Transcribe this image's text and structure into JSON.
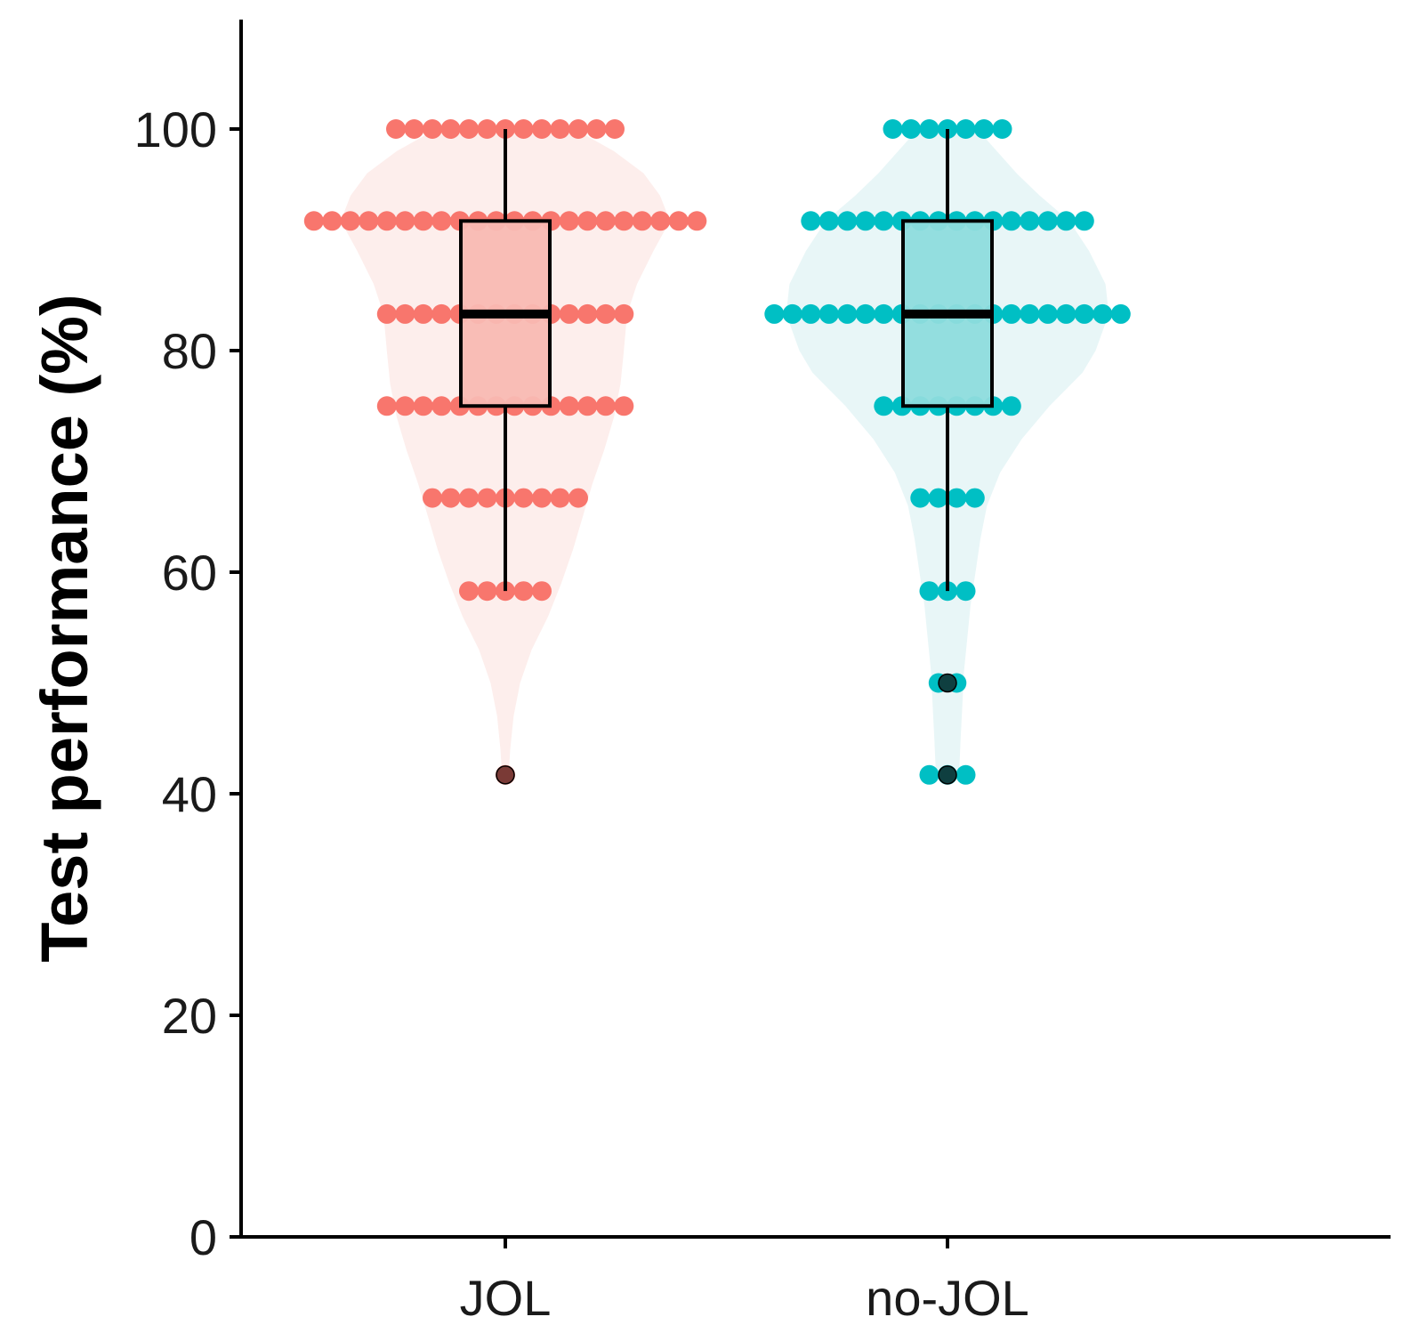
{
  "chart_data": {
    "type": "violin",
    "title": "",
    "xlabel": "",
    "ylabel": "Test performance (%)",
    "ylim": [
      0,
      110
    ],
    "y_ticks": [
      0,
      20,
      40,
      60,
      80,
      100
    ],
    "categories": [
      "JOL",
      "no-JOL"
    ],
    "grid": false,
    "legend": "none",
    "series": [
      {
        "category": "JOL",
        "color": "#F8766D",
        "violin_fill": "#FDEEEC",
        "box_fill": "#F9B9B3",
        "outlier_color": "#7A3A36",
        "box": {
          "whisker_low": 58.3,
          "q1": 75,
          "median": 83.3,
          "q3": 91.7,
          "whisker_high": 100
        },
        "outliers": [
          41.7
        ],
        "dots": [
          {
            "y": 100,
            "count": 13
          },
          {
            "y": 91.7,
            "count": 22
          },
          {
            "y": 83.3,
            "count": 14
          },
          {
            "y": 75,
            "count": 14
          },
          {
            "y": 66.7,
            "count": 9
          },
          {
            "y": 58.3,
            "count": 5
          },
          {
            "y": 41.7,
            "count": 1
          }
        ],
        "density": [
          [
            41.7,
            0.02
          ],
          [
            44,
            0.03
          ],
          [
            47,
            0.05
          ],
          [
            50,
            0.09
          ],
          [
            53,
            0.16
          ],
          [
            56,
            0.26
          ],
          [
            59,
            0.34
          ],
          [
            62,
            0.41
          ],
          [
            65,
            0.47
          ],
          [
            68,
            0.53
          ],
          [
            71,
            0.6
          ],
          [
            74,
            0.66
          ],
          [
            77,
            0.7
          ],
          [
            80,
            0.72
          ],
          [
            83.3,
            0.74
          ],
          [
            86,
            0.8
          ],
          [
            89,
            0.9
          ],
          [
            91.7,
            1.0
          ],
          [
            94,
            0.94
          ],
          [
            96,
            0.84
          ],
          [
            98,
            0.66
          ],
          [
            100,
            0.42
          ]
        ]
      },
      {
        "category": "no-JOL",
        "color": "#00BFC4",
        "violin_fill": "#E8F6F7",
        "box_fill": "#8EDCDD",
        "outlier_color": "#0F3F40",
        "box": {
          "whisker_low": 58.3,
          "q1": 75,
          "median": 83.3,
          "q3": 91.7,
          "whisker_high": 100
        },
        "outliers": [
          50,
          41.7
        ],
        "dots": [
          {
            "y": 100,
            "count": 7
          },
          {
            "y": 91.7,
            "count": 16
          },
          {
            "y": 83.3,
            "count": 20
          },
          {
            "y": 75,
            "count": 8
          },
          {
            "y": 66.7,
            "count": 4
          },
          {
            "y": 58.3,
            "count": 3
          },
          {
            "y": 50,
            "count": 2
          },
          {
            "y": 41.7,
            "count": 3
          }
        ],
        "density": [
          [
            41.7,
            0.07
          ],
          [
            45,
            0.08
          ],
          [
            48,
            0.09
          ],
          [
            51,
            0.1
          ],
          [
            54,
            0.12
          ],
          [
            57,
            0.14
          ],
          [
            60,
            0.17
          ],
          [
            63,
            0.2
          ],
          [
            66,
            0.24
          ],
          [
            69,
            0.32
          ],
          [
            72,
            0.45
          ],
          [
            75,
            0.62
          ],
          [
            78,
            0.82
          ],
          [
            80,
            0.9
          ],
          [
            83.3,
            0.98
          ],
          [
            86,
            0.96
          ],
          [
            89,
            0.86
          ],
          [
            91.7,
            0.74
          ],
          [
            94,
            0.56
          ],
          [
            96,
            0.42
          ],
          [
            98,
            0.3
          ],
          [
            100,
            0.18
          ]
        ]
      }
    ]
  }
}
